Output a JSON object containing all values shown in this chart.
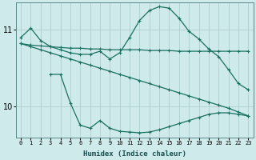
{
  "xlabel": "Humidex (Indice chaleur)",
  "background_color": "#ceeaea",
  "grid_color": "#aecece",
  "line_color": "#1a7060",
  "x_ticks": [
    0,
    1,
    2,
    3,
    4,
    5,
    6,
    7,
    8,
    9,
    10,
    11,
    12,
    13,
    14,
    15,
    16,
    17,
    18,
    19,
    20,
    21,
    22,
    23
  ],
  "y_ticks": [
    10,
    11
  ],
  "ylim": [
    9.6,
    11.35
  ],
  "xlim": [
    -0.5,
    23.5
  ],
  "series": [
    {
      "x": [
        0,
        1,
        2,
        3,
        4,
        5,
        6,
        7,
        8,
        9,
        10,
        11,
        12,
        13,
        14,
        15,
        16,
        17,
        18,
        19,
        20,
        21,
        22,
        23
      ],
      "y": [
        10.9,
        11.02,
        10.86,
        10.78,
        10.74,
        10.7,
        10.68,
        10.68,
        10.72,
        10.62,
        10.7,
        10.9,
        11.12,
        11.25,
        11.3,
        11.28,
        11.15,
        10.98,
        10.88,
        10.75,
        10.65,
        10.48,
        10.3,
        10.22
      ]
    },
    {
      "x": [
        0,
        1,
        2,
        3,
        4,
        5,
        6,
        7,
        8,
        9,
        10,
        11,
        12,
        13,
        14,
        15,
        16,
        17,
        18,
        19,
        20,
        21,
        22,
        23
      ],
      "y": [
        10.82,
        10.8,
        10.79,
        10.78,
        10.77,
        10.76,
        10.76,
        10.75,
        10.75,
        10.74,
        10.74,
        10.74,
        10.74,
        10.73,
        10.73,
        10.73,
        10.72,
        10.72,
        10.72,
        10.72,
        10.72,
        10.72,
        10.72,
        10.72
      ]
    },
    {
      "x": [
        0,
        1,
        2,
        3,
        4,
        5,
        6,
        7,
        8,
        9,
        10,
        11,
        12,
        13,
        14,
        15,
        16,
        17,
        18,
        19,
        20,
        21,
        22,
        23
      ],
      "y": [
        10.82,
        10.78,
        10.74,
        10.7,
        10.66,
        10.62,
        10.58,
        10.54,
        10.5,
        10.46,
        10.42,
        10.38,
        10.34,
        10.3,
        10.26,
        10.22,
        10.18,
        10.14,
        10.1,
        10.06,
        10.02,
        9.98,
        9.93,
        9.88
      ]
    },
    {
      "x": [
        3,
        4,
        5,
        6,
        7,
        8,
        9,
        10,
        11,
        12,
        13,
        14,
        15,
        16,
        17,
        18,
        19,
        20,
        21,
        22,
        23
      ],
      "y": [
        10.42,
        10.42,
        10.05,
        9.76,
        9.72,
        9.82,
        9.72,
        9.68,
        9.67,
        9.66,
        9.67,
        9.7,
        9.74,
        9.78,
        9.82,
        9.86,
        9.9,
        9.92,
        9.92,
        9.9,
        9.88
      ]
    }
  ]
}
